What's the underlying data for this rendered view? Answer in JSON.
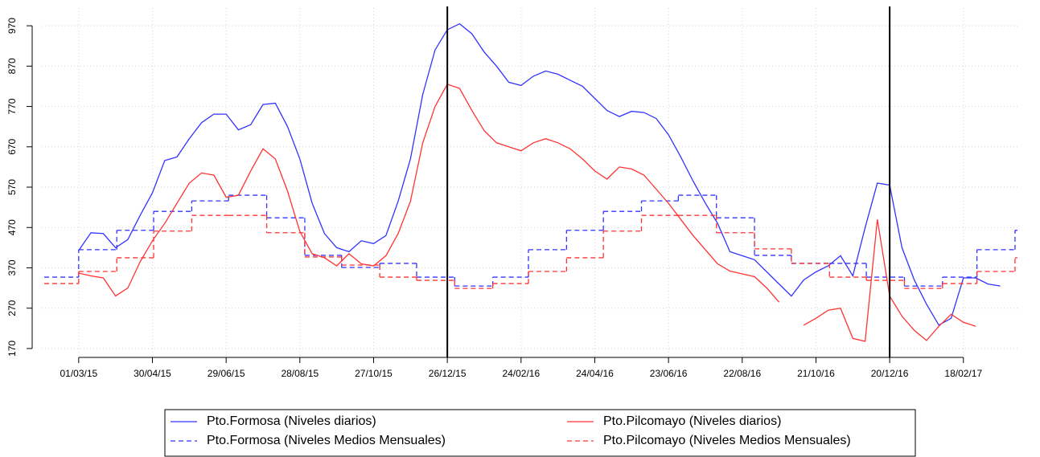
{
  "chart_data": {
    "type": "line",
    "xlim": [
      "30/01/15",
      "03/04/17"
    ],
    "ylim": [
      148,
      1014
    ],
    "xticks": [
      "01/03/15",
      "30/04/15",
      "29/06/15",
      "28/08/15",
      "27/10/15",
      "26/12/15",
      "24/02/16",
      "24/04/16",
      "23/06/16",
      "22/08/16",
      "21/10/16",
      "20/12/16",
      "18/02/17"
    ],
    "yticks": [
      170,
      270,
      370,
      470,
      570,
      670,
      770,
      870,
      970
    ],
    "grid": true,
    "legend": "bottom",
    "vlines": [
      "26/12/15",
      "20/12/16"
    ],
    "series": [
      {
        "name": "Pto.Formosa (Niveles diarios)",
        "color": "#3333ff",
        "line_style": "solid",
        "x": [
          "01/03/15",
          "11/03/15",
          "21/03/15",
          "31/03/15",
          "10/04/15",
          "20/04/15",
          "30/04/15",
          "10/05/15",
          "20/05/15",
          "30/05/15",
          "09/06/15",
          "19/06/15",
          "29/06/15",
          "09/07/15",
          "19/07/15",
          "29/07/15",
          "08/08/15",
          "18/08/15",
          "28/08/15",
          "07/09/15",
          "17/09/15",
          "27/09/15",
          "07/10/15",
          "17/10/15",
          "27/10/15",
          "06/11/15",
          "16/11/15",
          "26/11/15",
          "06/12/15",
          "16/12/15",
          "26/12/15",
          "05/01/16",
          "15/01/16",
          "25/01/16",
          "04/02/16",
          "14/02/16",
          "24/02/16",
          "05/03/16",
          "15/03/16",
          "25/03/16",
          "04/04/16",
          "14/04/16",
          "24/04/16",
          "04/05/16",
          "14/05/16",
          "24/05/16",
          "03/06/16",
          "13/06/16",
          "23/06/16",
          "03/07/16",
          "13/07/16",
          "23/07/16",
          "02/08/16",
          "12/08/16",
          "22/08/16",
          "01/09/16",
          "11/09/16",
          "21/09/16",
          "01/10/16",
          "11/10/16",
          "21/10/16",
          "31/10/16",
          "10/11/16",
          "20/11/16",
          "30/11/16",
          "10/12/16",
          "20/12/16",
          "30/12/16",
          "09/01/17",
          "19/01/17",
          "29/01/17",
          "08/02/17",
          "18/02/17",
          "28/02/17",
          "10/03/17",
          "20/03/17"
        ],
        "values": [
          413,
          457,
          455,
          420,
          440,
          500,
          556,
          636,
          645,
          690,
          730,
          751,
          751,
          712,
          725,
          775,
          778,
          720,
          640,
          530,
          455,
          420,
          410,
          437,
          430,
          450,
          535,
          640,
          800,
          910,
          960,
          975,
          950,
          905,
          870,
          830,
          822,
          845,
          858,
          850,
          835,
          820,
          790,
          760,
          745,
          758,
          755,
          740,
          700,
          645,
          585,
          530,
          480,
          410,
          400,
          390,
          360,
          330,
          300,
          340,
          360,
          375,
          400,
          350,
          470,
          580,
          575,
          420,
          340,
          280,
          228,
          245,
          345,
          345,
          330,
          325
        ]
      },
      {
        "name": "Pto.Formosa (Niveles Medios Mensuales)",
        "color": "#3333ff",
        "line_style": "dashed",
        "x": [
          "01/02/15",
          "01/03/15",
          "01/04/15",
          "01/05/15",
          "01/06/15",
          "01/07/15",
          "01/08/15",
          "01/09/15",
          "01/10/15",
          "01/11/15",
          "01/12/15",
          "01/01/16",
          "01/02/16",
          "01/03/16",
          "01/04/16",
          "01/05/16",
          "01/06/16",
          "01/07/16",
          "01/08/16",
          "01/09/16",
          "01/10/16",
          "01/11/16",
          "01/12/16",
          "01/01/17",
          "01/02/17",
          "01/03/17",
          "01/04/17"
        ],
        "values": [
          347,
          415,
          463,
          510,
          536,
          550,
          494,
          401,
          371,
          381,
          347,
          325,
          347,
          415,
          463,
          510,
          536,
          550,
          494,
          401,
          381,
          381,
          347,
          325,
          347,
          415,
          463
        ]
      },
      {
        "name": "Pto.Pilcomayo (Niveles diarios)",
        "color": "#ff3333",
        "line_style": "solid",
        "x": [
          "01/03/15",
          "11/03/15",
          "21/03/15",
          "31/03/15",
          "10/04/15",
          "20/04/15",
          "30/04/15",
          "10/05/15",
          "20/05/15",
          "30/05/15",
          "09/06/15",
          "19/06/15",
          "29/06/15",
          "09/07/15",
          "19/07/15",
          "29/07/15",
          "08/08/15",
          "18/08/15",
          "28/08/15",
          "07/09/15",
          "17/09/15",
          "27/09/15",
          "07/10/15",
          "17/10/15",
          "27/10/15",
          "06/11/15",
          "16/11/15",
          "26/11/15",
          "06/12/15",
          "16/12/15",
          "26/12/15",
          "05/01/16",
          "15/01/16",
          "25/01/16",
          "04/02/16",
          "14/02/16",
          "24/02/16",
          "05/03/16",
          "15/03/16",
          "25/03/16",
          "04/04/16",
          "14/04/16",
          "24/04/16",
          "04/05/16",
          "14/05/16",
          "24/05/16",
          "03/06/16",
          "13/06/16",
          "23/06/16",
          "03/07/16",
          "13/07/16",
          "23/07/16",
          "02/08/16",
          "12/08/16",
          "22/08/16",
          "01/09/16",
          "11/09/16",
          "21/09/16",
          "01/10/16",
          "11/10/16",
          "21/10/16",
          "31/10/16",
          "10/11/16",
          "20/11/16",
          "30/11/16",
          "10/12/16",
          "20/12/16",
          "30/12/16",
          "09/01/17",
          "19/01/17",
          "29/01/17",
          "08/02/17",
          "18/02/17",
          "28/02/17"
        ],
        "values": [
          357,
          350,
          345,
          300,
          320,
          385,
          437,
          480,
          530,
          580,
          605,
          600,
          545,
          550,
          610,
          665,
          640,
          560,
          460,
          405,
          395,
          375,
          405,
          380,
          375,
          400,
          455,
          535,
          680,
          770,
          825,
          815,
          760,
          710,
          680,
          670,
          660,
          680,
          690,
          680,
          665,
          640,
          610,
          590,
          620,
          615,
          600,
          565,
          530,
          490,
          450,
          415,
          380,
          362,
          355,
          348,
          320,
          285,
          null,
          228,
          245,
          265,
          270,
          195,
          188,
          490,
          300,
          250,
          215,
          190,
          225,
          255,
          235,
          225
        ]
      },
      {
        "name": "Pto.Pilcomayo (Niveles Medios Mensuales)",
        "color": "#ff3333",
        "line_style": "dashed",
        "x": [
          "01/02/15",
          "01/03/15",
          "01/04/15",
          "01/05/15",
          "01/06/15",
          "01/07/15",
          "01/08/15",
          "01/09/15",
          "01/10/15",
          "01/11/15",
          "01/12/15",
          "01/01/16",
          "01/02/16",
          "01/03/16",
          "01/04/16",
          "01/05/16",
          "01/06/16",
          "01/07/16",
          "01/08/16",
          "01/09/16",
          "01/10/16",
          "01/11/16",
          "01/12/16",
          "01/01/17",
          "01/02/17",
          "01/03/17",
          "01/04/17"
        ],
        "values": [
          331,
          361,
          395,
          461,
          500,
          500,
          457,
          397,
          377,
          347,
          339,
          319,
          331,
          361,
          395,
          461,
          500,
          500,
          457,
          417,
          381,
          347,
          339,
          319,
          331,
          361,
          395
        ]
      }
    ]
  }
}
